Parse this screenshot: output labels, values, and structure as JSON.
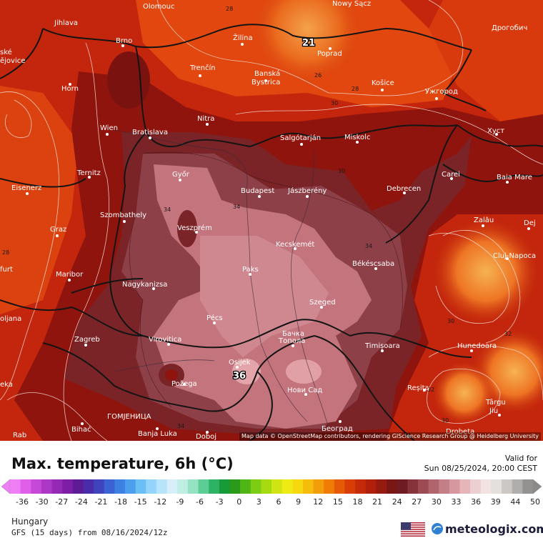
{
  "title": "Max. temperature, 6h (°C)",
  "valid_label": "Valid for",
  "valid_date": "Sun 08/25/2024, 20:00 CEST",
  "region": "Hungary",
  "model_run": "GFS (15 days) from  08/16/2024/12z",
  "brand": "meteologix.com",
  "attribution": "Map data © OpenStreetMap contributors, rendering GIScience Research Group @ Heidelberg University",
  "scale": {
    "ticks": [
      "-36",
      "-30",
      "-27",
      "-24",
      "-21",
      "-18",
      "-15",
      "-12",
      "-9",
      "-6",
      "-3",
      "0",
      "3",
      "6",
      "9",
      "12",
      "15",
      "18",
      "21",
      "24",
      "27",
      "30",
      "33",
      "36",
      "39",
      "44",
      "50"
    ],
    "colors": [
      "#f07ef4",
      "#df5fe8",
      "#c549d6",
      "#ae38c6",
      "#9529b6",
      "#7d1fa6",
      "#5e1b96",
      "#4b2ca8",
      "#3f44bd",
      "#3a62d2",
      "#3d80e2",
      "#4aa0ee",
      "#6cbff5",
      "#94d4fa",
      "#b8e4fb",
      "#d6eff9",
      "#bfeee2",
      "#96e3c4",
      "#5ccd95",
      "#2eb366",
      "#169a3a",
      "#2a9a18",
      "#4fb616",
      "#7ccd13",
      "#a6db12",
      "#cfe412",
      "#eeeb14",
      "#f7d80f",
      "#f5bc0c",
      "#f29e08",
      "#ee7c06",
      "#e65a07",
      "#d83d08",
      "#c62b09",
      "#b0200b",
      "#951a10",
      "#7a1516",
      "#6e1c22",
      "#84343a",
      "#9c4a54",
      "#b0646c",
      "#c47e86",
      "#d6989e",
      "#e5b5b9",
      "#eecfd1",
      "#f2e2e1",
      "#e3e0dd",
      "#cbc8c6",
      "#b0aeac",
      "#949291"
    ]
  },
  "cities": [
    {
      "name": "Olomouc"
    },
    {
      "name": "Nowy Sącz"
    },
    {
      "name": "Jihlava"
    },
    {
      "name": "Дрогобич"
    },
    {
      "name": "Brno"
    },
    {
      "name": "Žilina"
    },
    {
      "name": "Poprad"
    },
    {
      "name": "ské"
    },
    {
      "name": "ějovice"
    },
    {
      "name": "Trenčín"
    },
    {
      "name": "Banská"
    },
    {
      "name": "Bystrica"
    },
    {
      "name": "Horn"
    },
    {
      "name": "Košice"
    },
    {
      "name": "Ужгород"
    },
    {
      "name": "Nitra"
    },
    {
      "name": "Wien"
    },
    {
      "name": "Bratislava"
    },
    {
      "name": "Хуст"
    },
    {
      "name": "Salgótarján"
    },
    {
      "name": "Miskolc"
    },
    {
      "name": "Ternitz"
    },
    {
      "name": "Győr"
    },
    {
      "name": "Carei"
    },
    {
      "name": "Baia Mare"
    },
    {
      "name": "Eisenerz"
    },
    {
      "name": "Budapest"
    },
    {
      "name": "Jászberény"
    },
    {
      "name": "Debrecen"
    },
    {
      "name": "Szombathely"
    },
    {
      "name": "Zalău"
    },
    {
      "name": "Dej"
    },
    {
      "name": "Graz"
    },
    {
      "name": "Veszprém"
    },
    {
      "name": "Kecskemét"
    },
    {
      "name": "Cluj-Napoca"
    },
    {
      "name": "furt"
    },
    {
      "name": "Maribor"
    },
    {
      "name": "Paks"
    },
    {
      "name": "Békéscsaba"
    },
    {
      "name": "Nagykanizsa"
    },
    {
      "name": "oljana"
    },
    {
      "name": "Pécs"
    },
    {
      "name": "Szeged"
    },
    {
      "name": "Zagreb"
    },
    {
      "name": "Virovitica"
    },
    {
      "name": "Бачка"
    },
    {
      "name": "Топола"
    },
    {
      "name": "Timișoara"
    },
    {
      "name": "Hunedoara"
    },
    {
      "name": "Osijek"
    },
    {
      "name": "Požega"
    },
    {
      "name": "Нови Сад"
    },
    {
      "name": "Reșița"
    },
    {
      "name": "eka"
    },
    {
      "name": "Târgu"
    },
    {
      "name": "Jiu"
    },
    {
      "name": "ГОМЈЕНИЦА"
    },
    {
      "name": "Bihać"
    },
    {
      "name": "Banja Luka"
    },
    {
      "name": "Rab"
    },
    {
      "name": "Doboj"
    },
    {
      "name": "Београд"
    },
    {
      "name": "Drobeta"
    }
  ],
  "isolines": [
    "28",
    "26",
    "28",
    "30",
    "30",
    "34",
    "34",
    "34",
    "34",
    "28",
    "30",
    "32",
    "32",
    "30",
    "34"
  ],
  "values": [
    "21",
    "36"
  ]
}
